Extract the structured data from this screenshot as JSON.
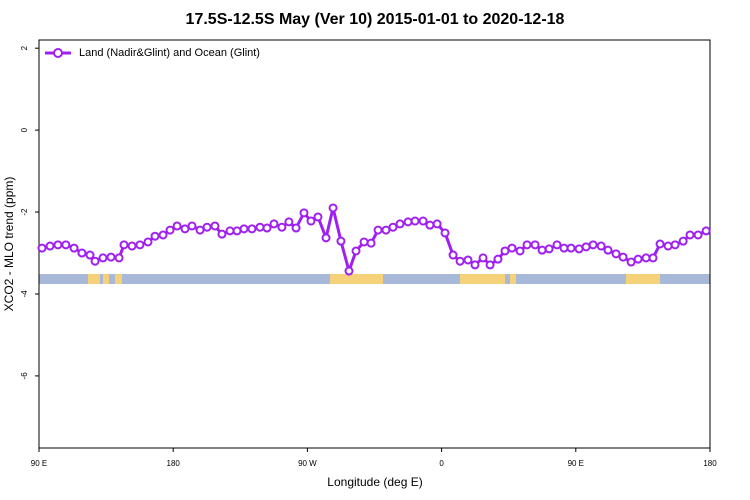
{
  "chart_data": {
    "type": "line",
    "title": "17.5S-12.5S May (Ver 10)   2015-01-01 to 2020-12-18",
    "x_label": "Longitude (deg E)",
    "y_label": "XCO2 - MLO trend (ppm)",
    "x": [
      92,
      97.4,
      102.7,
      108,
      113.5,
      118.8,
      124.2,
      127.6,
      132.9,
      138.3,
      143.7,
      147,
      152.4,
      157.7,
      163.1,
      167.8,
      173.2,
      177.9,
      182.6,
      187.9,
      192.6,
      198,
      202.7,
      208,
      212.7,
      218.1,
      222.8,
      227.5,
      232.8,
      238.2,
      242.9,
      247.6,
      252.9,
      257.6,
      262.4,
      267.7,
      272.4,
      277.1,
      282.5,
      287.2,
      292.5,
      297.9,
      302.6,
      308,
      312.7,
      317.4,
      322.7,
      327.4,
      332.1,
      337.5,
      342.2,
      347.6,
      352.2,
      357,
      362.3,
      367.7,
      372.4,
      377.7,
      382.4,
      387.8,
      392.5,
      397.8,
      402.5,
      407.2,
      412.6,
      417.3,
      422.7,
      427.4,
      432.1,
      437.4,
      442.1,
      446.8,
      452.2,
      456.9,
      461.6,
      467,
      471.6,
      477,
      481.7,
      487.1,
      491.8,
      497.1,
      501.8,
      506.5,
      511.9,
      516.6,
      522,
      526.6,
      532,
      537.4
    ],
    "series": [
      {
        "name": "Land (Nadir&Glint) and Ocean (Glint)",
        "color": "#a020f0",
        "values": [
          -2.88,
          -2.83,
          -2.8,
          -2.8,
          -2.88,
          -3.0,
          -3.05,
          -3.2,
          -3.12,
          -3.1,
          -3.12,
          -2.8,
          -2.83,
          -2.8,
          -2.73,
          -2.59,
          -2.56,
          -2.44,
          -2.34,
          -2.41,
          -2.34,
          -2.44,
          -2.37,
          -2.34,
          -2.54,
          -2.46,
          -2.46,
          -2.41,
          -2.41,
          -2.37,
          -2.39,
          -2.29,
          -2.37,
          -2.24,
          -2.39,
          -2.02,
          -2.22,
          -2.12,
          -2.63,
          -1.9,
          -2.71,
          -3.44,
          -2.95,
          -2.73,
          -2.76,
          -2.44,
          -2.44,
          -2.37,
          -2.29,
          -2.24,
          -2.22,
          -2.22,
          -2.32,
          -2.29,
          -2.51,
          -3.05,
          -3.2,
          -3.17,
          -3.29,
          -3.12,
          -3.29,
          -3.15,
          -2.95,
          -2.88,
          -2.95,
          -2.8,
          -2.8,
          -2.93,
          -2.9,
          -2.8,
          -2.88,
          -2.88,
          -2.9,
          -2.85,
          -2.8,
          -2.83,
          -2.93,
          -3.02,
          -3.1,
          -3.22,
          -3.15,
          -3.12,
          -3.12,
          -2.78,
          -2.83,
          -2.8,
          -2.71,
          -2.56,
          -2.56,
          -2.46
        ]
      }
    ],
    "xlim": [
      90,
      540
    ],
    "xticks": [
      {
        "value": 90,
        "label": "90 E"
      },
      180,
      {
        "value": 270,
        "label": "90 W"
      },
      {
        "value": 360,
        "label": "0"
      },
      {
        "value": 450,
        "label": "90 E"
      },
      {
        "value": 540,
        "label": "180"
      }
    ],
    "ylim": [
      -7.76,
      2.2
    ],
    "yticks": [
      2,
      0,
      -2,
      -4,
      -6
    ],
    "grid": false,
    "legend": "top-left"
  }
}
